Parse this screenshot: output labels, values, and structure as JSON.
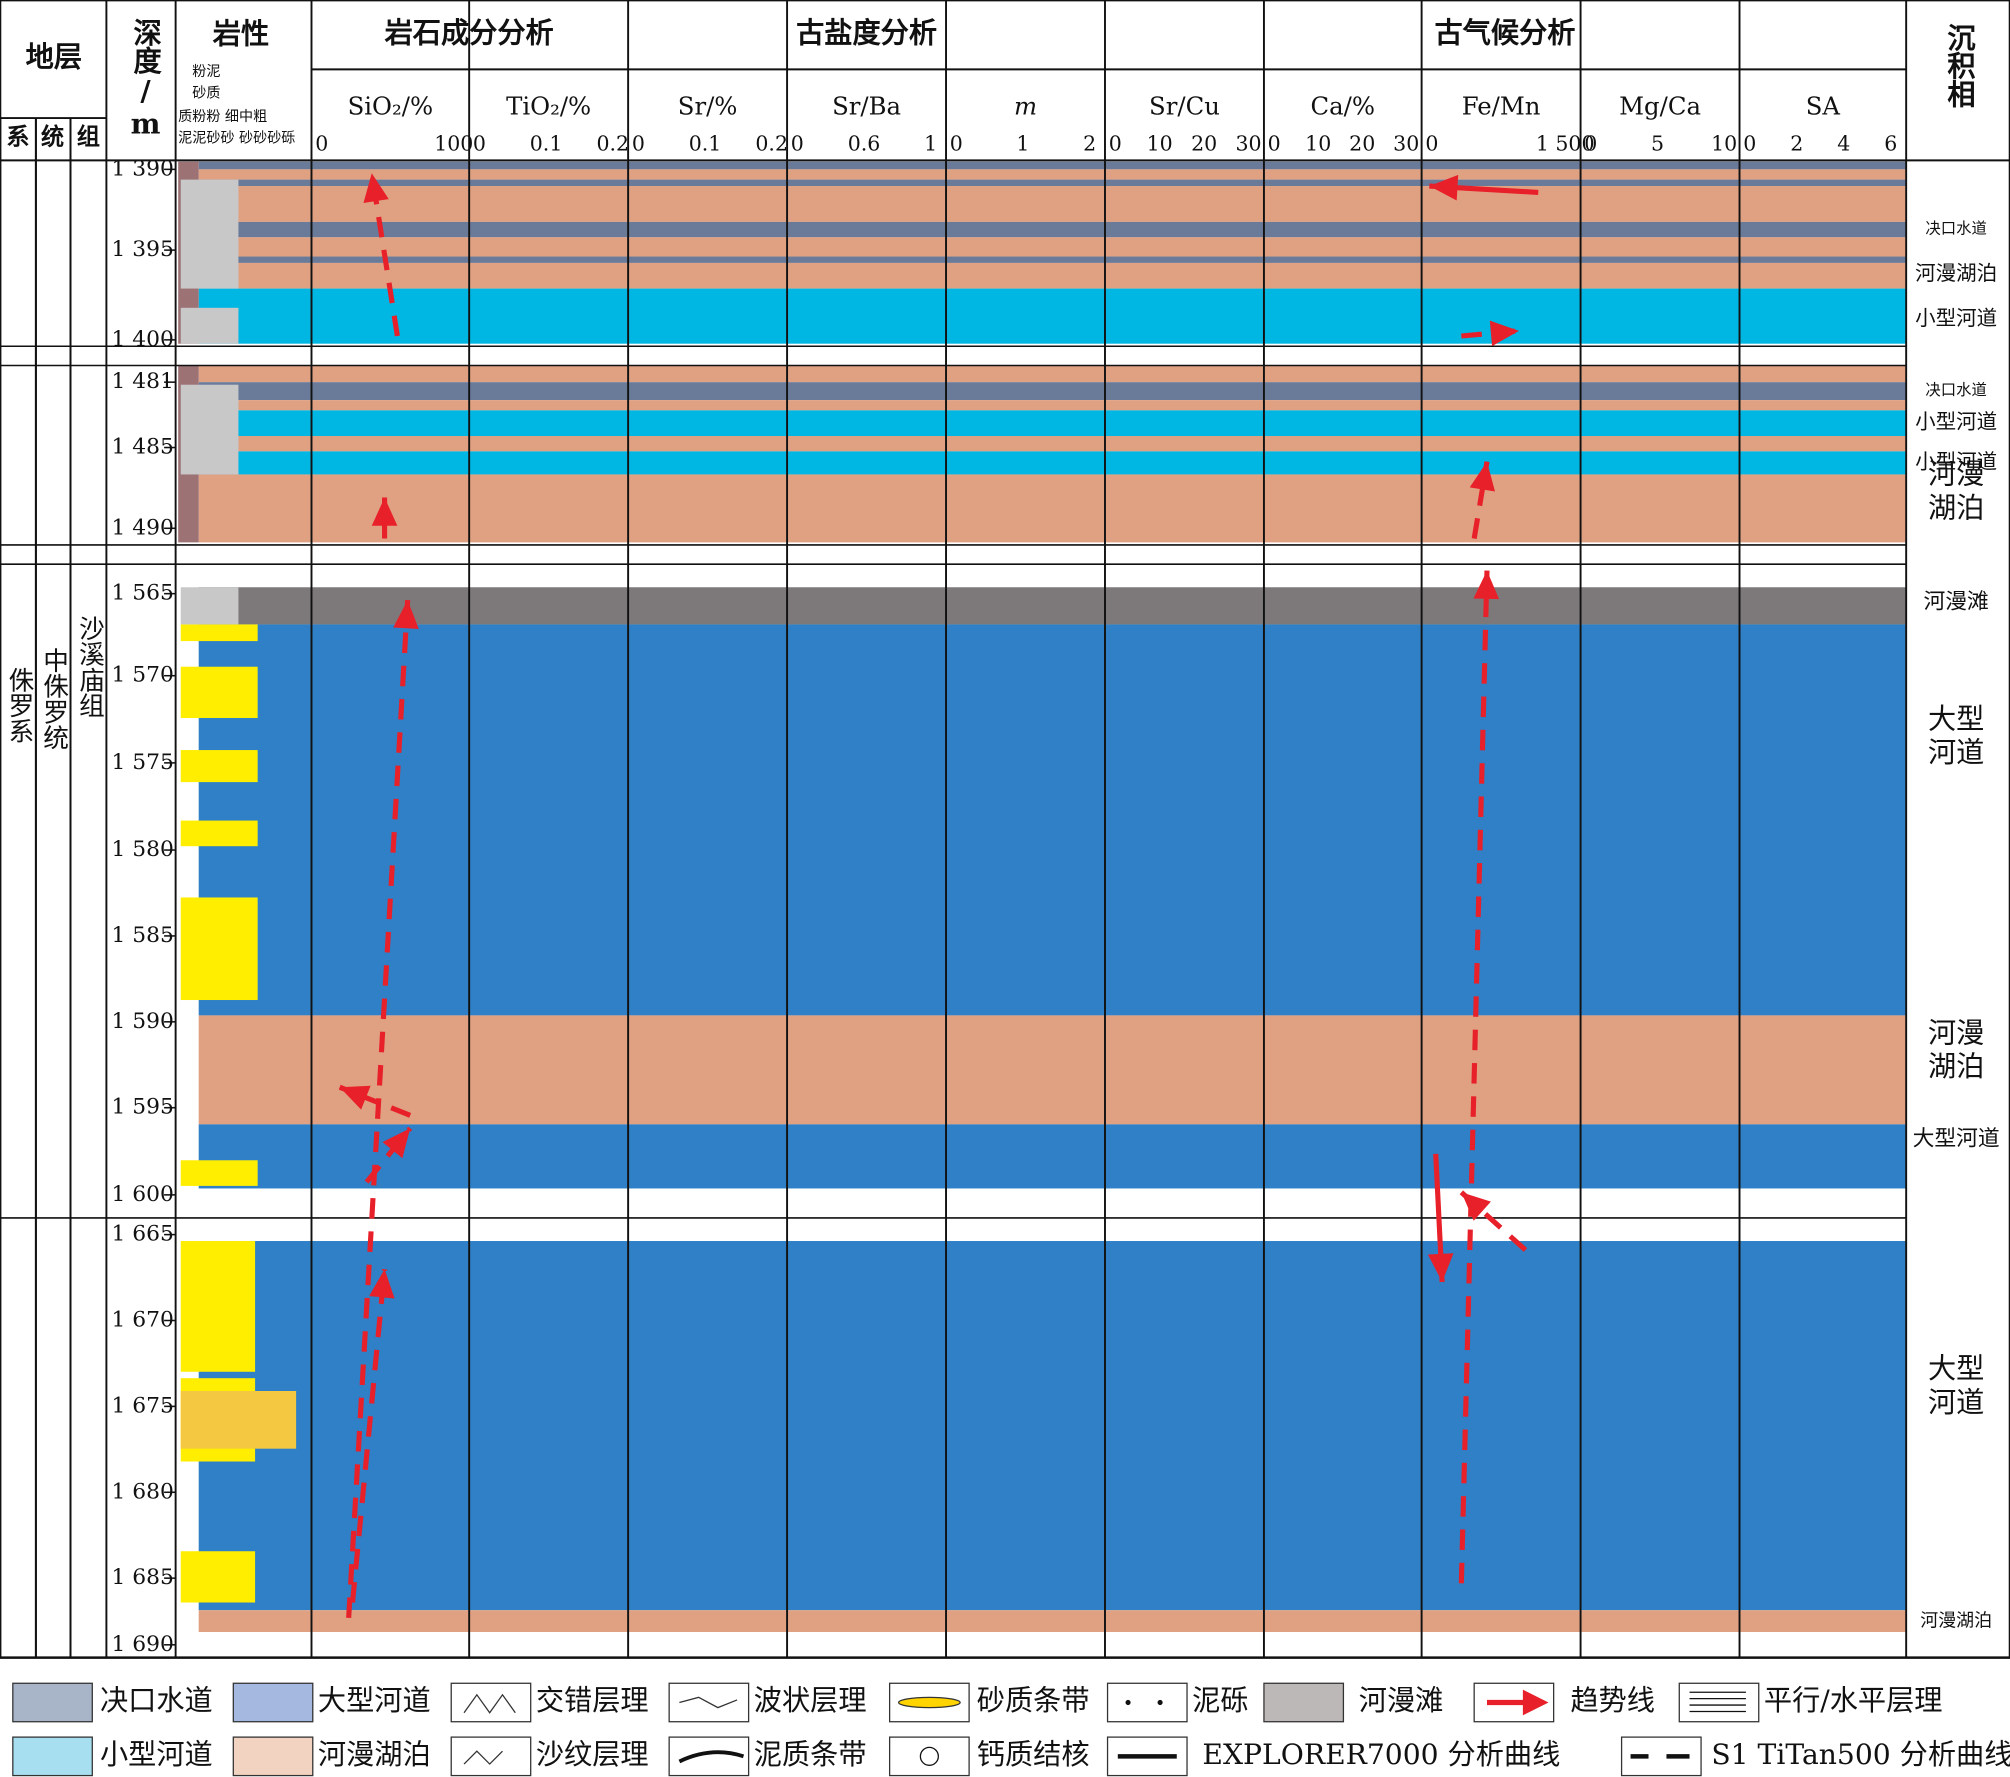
{
  "header": {
    "strata": "地层",
    "strata_sub": [
      "系",
      "统",
      "组"
    ],
    "depth": "深度/m",
    "lithology": "岩性",
    "lithology_sub": [
      "粉泥",
      "砂质",
      "质粉粉 细中粗",
      "泥泥砂砂 砂砂砂砾"
    ],
    "facies": "沉积相",
    "groups": [
      "岩石成分分析",
      "古盐度分析",
      "古气候分析"
    ]
  },
  "columns": [
    {
      "name": "SiO₂/%",
      "ticks": [
        "0",
        "100"
      ]
    },
    {
      "name": "TiO₂/%",
      "ticks": [
        "0",
        "0.1",
        "0.2"
      ]
    },
    {
      "name": "Sr/%",
      "ticks": [
        "0",
        "0.1",
        "0.2"
      ]
    },
    {
      "name": "Sr/Ba",
      "ticks": [
        "0",
        "0.6",
        "1"
      ]
    },
    {
      "name": "m",
      "ticks": [
        "0",
        "1",
        "2"
      ]
    },
    {
      "name": "Sr/Cu",
      "ticks": [
        "0",
        "10",
        "20",
        "30"
      ]
    },
    {
      "name": "Ca/%",
      "ticks": [
        "0",
        "10",
        "20",
        "30"
      ]
    },
    {
      "name": "Fe/Mn",
      "ticks": [
        "0",
        "1 500"
      ]
    },
    {
      "name": "Mg/Ca",
      "ticks": [
        "0",
        "5",
        "10"
      ]
    },
    {
      "name": "SA",
      "ticks": [
        "0",
        "2",
        "4",
        "6"
      ]
    }
  ],
  "strata": {
    "system": "侏罗系",
    "series": "中侏罗统",
    "formation": "沙溪庙组"
  },
  "depth_segments": [
    [
      "1 390",
      "1 395",
      "1 400"
    ],
    [
      "1 481",
      "1 485",
      "1 490"
    ],
    [
      "1 565",
      "1 570",
      "1 575",
      "1 580",
      "1 585",
      "1 590",
      "1 595",
      "1 600"
    ],
    [
      "1 665",
      "1 670",
      "1 675",
      "1 680",
      "1 685",
      "1 690"
    ]
  ],
  "facies_labels": [
    "决口水道",
    "河漫湖泊",
    "小型河道",
    "决口水道",
    "小型河道",
    "小型河道",
    "河漫湖泊",
    "河漫滩",
    "大型河道",
    "河漫湖泊",
    "大型河道",
    "大型河道",
    "河漫湖泊"
  ],
  "legend": [
    "决口水道",
    "大型河道",
    "交错层理",
    "波状层理",
    "砂质条带",
    "泥砾",
    "河漫滩",
    "趋势线",
    "平行/水平层理",
    "小型河道",
    "河漫湖泊",
    "沙纹层理",
    "泥质条带",
    "钙质结核",
    "EXPLORER7000 分析曲线",
    "S1 TiTan500 分析曲线"
  ]
}
